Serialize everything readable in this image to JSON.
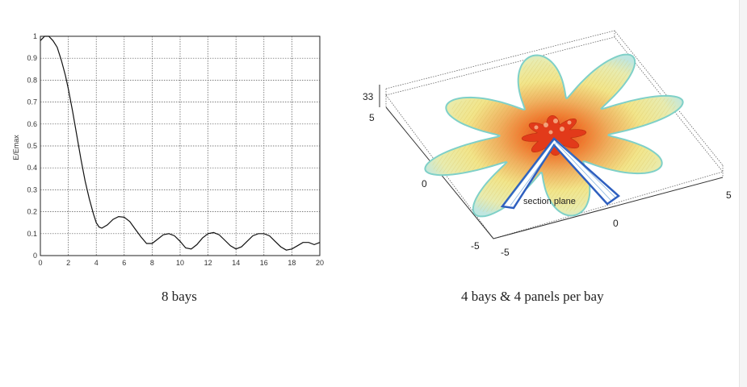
{
  "chart_data": [
    {
      "type": "line",
      "title": "",
      "xlabel": "",
      "ylabel": "E/Emax",
      "xlim": [
        0,
        20
      ],
      "ylim": [
        0,
        1
      ],
      "xticks": [
        "0",
        "2",
        "4",
        "6",
        "8",
        "10",
        "12",
        "14",
        "16",
        "18",
        "20"
      ],
      "yticks": [
        "0",
        "0.1",
        "0.2",
        "0.3",
        "0.4",
        "0.5",
        "0.6",
        "0.7",
        "0.8",
        "0.9",
        "1"
      ],
      "grid": true,
      "series": [
        {
          "x": [
            0,
            0.3,
            0.6,
            0.9,
            1.2,
            1.5,
            1.8,
            2.0,
            2.3,
            2.6,
            2.9,
            3.2,
            3.5,
            3.8,
            4.0,
            4.2,
            4.4,
            4.8,
            5.2,
            5.6,
            6.0,
            6.4,
            6.8,
            7.2,
            7.6,
            8.0,
            8.4,
            8.8,
            9.2,
            9.6,
            10.0,
            10.4,
            10.8,
            11.2,
            11.6,
            12.0,
            12.4,
            12.8,
            13.2,
            13.6,
            14.0,
            14.4,
            14.8,
            15.2,
            15.6,
            16.0,
            16.4,
            16.8,
            17.2,
            17.6,
            18.0,
            18.4,
            18.8,
            19.2,
            19.6,
            20.0
          ],
          "y": [
            0.98,
            1.0,
            1.0,
            0.98,
            0.95,
            0.89,
            0.82,
            0.76,
            0.66,
            0.55,
            0.44,
            0.34,
            0.26,
            0.19,
            0.15,
            0.13,
            0.125,
            0.14,
            0.165,
            0.178,
            0.175,
            0.155,
            0.12,
            0.085,
            0.055,
            0.055,
            0.075,
            0.095,
            0.1,
            0.09,
            0.065,
            0.035,
            0.03,
            0.05,
            0.08,
            0.1,
            0.105,
            0.095,
            0.07,
            0.045,
            0.03,
            0.04,
            0.065,
            0.09,
            0.1,
            0.1,
            0.09,
            0.065,
            0.04,
            0.025,
            0.03,
            0.045,
            0.06,
            0.06,
            0.05,
            0.06
          ]
        }
      ]
    },
    {
      "type": "surface",
      "title": "",
      "xlim": [
        -5,
        5
      ],
      "ylim": [
        -5,
        5
      ],
      "xticks": [
        "-5",
        "0",
        "5"
      ],
      "yticks": [
        "-5",
        "0",
        "5"
      ],
      "zticks": [
        "5"
      ],
      "annotations": [
        "section plane"
      ],
      "grid": false
    }
  ],
  "captions": {
    "left": "8 bays",
    "right": "4 bays & 4 panels per bay"
  },
  "colors": {
    "line": "#111111",
    "grid": "#555555",
    "surface_outer": "#bfe6e0",
    "surface_mid": "#f2e58a",
    "surface_inner": "#f0a050",
    "surface_core": "#e23a1a",
    "section_wall": "#3a6fd0"
  }
}
